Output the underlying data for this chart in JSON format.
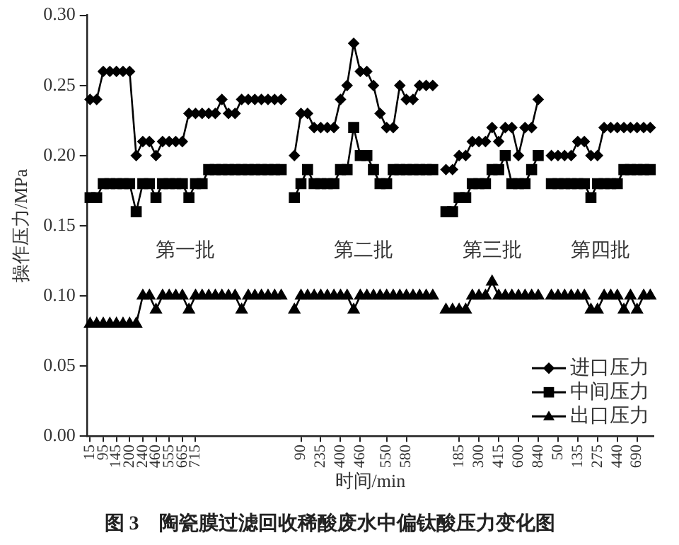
{
  "chart_data": {
    "type": "line",
    "title": "图 3　陶瓷膜过滤回收稀酸废水中偏钛酸压力变化图",
    "xlabel": "时间/min",
    "ylabel": "操作压力/MPa",
    "categories": [
      "15",
      null,
      "95",
      null,
      "145",
      null,
      "200",
      null,
      "240",
      null,
      "460",
      null,
      "555",
      null,
      "665",
      null,
      "715",
      null,
      null,
      null,
      null,
      null,
      null,
      null,
      null,
      null,
      null,
      null,
      null,
      null,
      null,
      null,
      "90",
      null,
      null,
      "235",
      null,
      null,
      "400",
      null,
      null,
      "460",
      null,
      null,
      null,
      "550",
      null,
      null,
      "580",
      null,
      null,
      null,
      null,
      null,
      null,
      null,
      "185",
      null,
      null,
      "300",
      null,
      null,
      "415",
      null,
      null,
      "600",
      null,
      null,
      "840",
      null,
      null,
      "50",
      null,
      null,
      "135",
      null,
      null,
      "275",
      null,
      null,
      "440",
      null,
      null,
      "690",
      null,
      null
    ],
    "series": [
      {
        "name": "进口压力",
        "color": "#000000",
        "marker": "diamond",
        "values": [
          0.24,
          0.24,
          0.26,
          0.26,
          0.26,
          0.26,
          0.26,
          0.2,
          0.21,
          0.21,
          0.2,
          0.21,
          0.21,
          0.21,
          0.21,
          0.23,
          0.23,
          0.23,
          0.23,
          0.23,
          0.24,
          0.23,
          0.23,
          0.24,
          0.24,
          0.24,
          0.24,
          0.24,
          0.24,
          0.24,
          null,
          0.2,
          0.23,
          0.23,
          0.22,
          0.22,
          0.22,
          0.22,
          0.24,
          0.25,
          0.28,
          0.26,
          0.26,
          0.25,
          0.23,
          0.22,
          0.22,
          0.25,
          0.24,
          0.24,
          0.25,
          0.25,
          0.25,
          null,
          0.19,
          0.19,
          0.2,
          0.2,
          0.21,
          0.21,
          0.21,
          0.22,
          0.21,
          0.22,
          0.22,
          0.2,
          0.22,
          0.22,
          0.24,
          null,
          0.2,
          0.2,
          0.2,
          0.2,
          0.21,
          0.21,
          0.2,
          0.2,
          0.22,
          0.22,
          0.22,
          0.22,
          0.22,
          0.22,
          0.22,
          0.22
        ]
      },
      {
        "name": "中间压力",
        "color": "#000000",
        "marker": "square",
        "values": [
          0.17,
          0.17,
          0.18,
          0.18,
          0.18,
          0.18,
          0.18,
          0.16,
          0.18,
          0.18,
          0.17,
          0.18,
          0.18,
          0.18,
          0.18,
          0.17,
          0.18,
          0.18,
          0.19,
          0.19,
          0.19,
          0.19,
          0.19,
          0.19,
          0.19,
          0.19,
          0.19,
          0.19,
          0.19,
          0.19,
          null,
          0.17,
          0.18,
          0.19,
          0.18,
          0.18,
          0.18,
          0.18,
          0.19,
          0.19,
          0.22,
          0.2,
          0.2,
          0.19,
          0.18,
          0.18,
          0.19,
          0.19,
          0.19,
          0.19,
          0.19,
          0.19,
          0.19,
          null,
          0.16,
          0.16,
          0.17,
          0.17,
          0.18,
          0.18,
          0.18,
          0.19,
          0.19,
          0.2,
          0.18,
          0.18,
          0.18,
          0.19,
          0.2,
          null,
          0.18,
          0.18,
          0.18,
          0.18,
          0.18,
          0.18,
          0.17,
          0.18,
          0.18,
          0.18,
          0.18,
          0.19,
          0.19,
          0.19,
          0.19,
          0.19
        ]
      },
      {
        "name": "出口压力",
        "color": "#000000",
        "marker": "triangle",
        "values": [
          0.08,
          0.08,
          0.08,
          0.08,
          0.08,
          0.08,
          0.08,
          0.08,
          0.1,
          0.1,
          0.09,
          0.1,
          0.1,
          0.1,
          0.1,
          0.09,
          0.1,
          0.1,
          0.1,
          0.1,
          0.1,
          0.1,
          0.1,
          0.09,
          0.1,
          0.1,
          0.1,
          0.1,
          0.1,
          0.1,
          null,
          0.09,
          0.1,
          0.1,
          0.1,
          0.1,
          0.1,
          0.1,
          0.1,
          0.1,
          0.09,
          0.1,
          0.1,
          0.1,
          0.1,
          0.1,
          0.1,
          0.1,
          0.1,
          0.1,
          0.1,
          0.1,
          0.1,
          null,
          0.09,
          0.09,
          0.09,
          0.09,
          0.1,
          0.1,
          0.1,
          0.11,
          0.1,
          0.1,
          0.1,
          0.1,
          0.1,
          0.1,
          0.1,
          null,
          0.1,
          0.1,
          0.1,
          0.1,
          0.1,
          0.1,
          0.09,
          0.09,
          0.1,
          0.1,
          0.1,
          0.09,
          0.1,
          0.09,
          0.1,
          0.1
        ]
      }
    ],
    "annotations": [
      "第一批",
      "第二批",
      "第三批",
      "第四批"
    ],
    "ylim": [
      0,
      0.3
    ],
    "yticks": [
      {
        "value": 0,
        "label": "0.00"
      },
      {
        "value": 0.05,
        "label": "0.05"
      },
      {
        "value": 0.1,
        "label": "0.10"
      },
      {
        "value": 0.15,
        "label": "0.15"
      },
      {
        "value": 0.2,
        "label": "0.20"
      },
      {
        "value": 0.25,
        "label": "0.25"
      },
      {
        "value": 0.3,
        "label": "0.30"
      }
    ],
    "grid": false,
    "legend": "bottom right",
    "line_style": "solid"
  }
}
